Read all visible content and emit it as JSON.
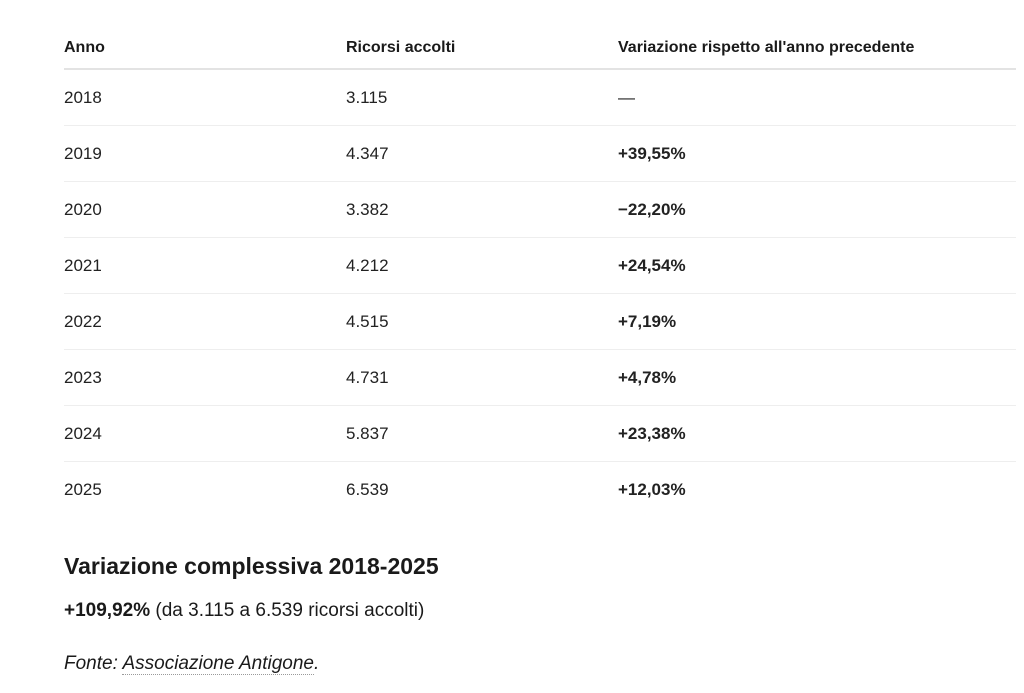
{
  "table": {
    "headers": [
      "Anno",
      "Ricorsi accolti",
      "Variazione rispetto all'anno precedente"
    ],
    "rows": [
      {
        "anno": "2018",
        "ricorsi": "3.115",
        "variazione": "—"
      },
      {
        "anno": "2019",
        "ricorsi": "4.347",
        "variazione": "+39,55%"
      },
      {
        "anno": "2020",
        "ricorsi": "3.382",
        "variazione": "−22,20%"
      },
      {
        "anno": "2021",
        "ricorsi": "4.212",
        "variazione": "+24,54%"
      },
      {
        "anno": "2022",
        "ricorsi": "4.515",
        "variazione": "+7,19%"
      },
      {
        "anno": "2023",
        "ricorsi": "4.731",
        "variazione": "+4,78%"
      },
      {
        "anno": "2024",
        "ricorsi": "5.837",
        "variazione": "+23,38%"
      },
      {
        "anno": "2025",
        "ricorsi": "6.539",
        "variazione": "+12,03%"
      }
    ]
  },
  "summary": {
    "title": "Variazione complessiva 2018-2025",
    "percentage": "+109,92%",
    "detail": "(da 3.115 a 6.539 ricorsi accolti)"
  },
  "source": {
    "label": "Fonte:",
    "link_text": "Associazione Antigone",
    "suffix": "."
  }
}
